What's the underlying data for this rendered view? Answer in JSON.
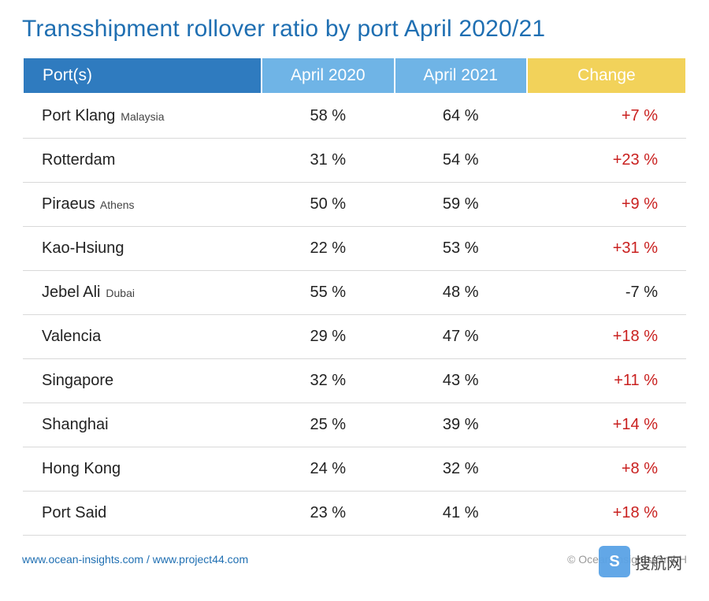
{
  "title": "Transshipment rollover ratio by port April 2020/21",
  "table": {
    "header": {
      "cells": [
        "Port(s)",
        "April 2020",
        "April 2021",
        "Change"
      ],
      "bg_colors": [
        "#2f7bbf",
        "#6fb4e6",
        "#6fb4e6",
        "#f2d25a"
      ],
      "widths_pct": [
        36,
        20,
        20,
        24
      ]
    },
    "rows": [
      {
        "port": "Port Klang",
        "sub": "Malaysia",
        "apr2020": "58 %",
        "apr2021": "64 %",
        "change": "+7 %",
        "change_sign": "pos"
      },
      {
        "port": "Rotterdam",
        "sub": "",
        "apr2020": "31 %",
        "apr2021": "54 %",
        "change": "+23 %",
        "change_sign": "pos"
      },
      {
        "port": "Piraeus",
        "sub": "Athens",
        "apr2020": "50 %",
        "apr2021": "59 %",
        "change": "+9 %",
        "change_sign": "pos"
      },
      {
        "port": "Kao-Hsiung",
        "sub": "",
        "apr2020": "22 %",
        "apr2021": "53 %",
        "change": "+31 %",
        "change_sign": "pos"
      },
      {
        "port": "Jebel Ali",
        "sub": "Dubai",
        "apr2020": "55 %",
        "apr2021": "48 %",
        "change": "-7 %",
        "change_sign": "neg"
      },
      {
        "port": "Valencia",
        "sub": "",
        "apr2020": "29 %",
        "apr2021": "47 %",
        "change": "+18 %",
        "change_sign": "pos"
      },
      {
        "port": "Singapore",
        "sub": "",
        "apr2020": "32 %",
        "apr2021": "43 %",
        "change": "+11 %",
        "change_sign": "pos"
      },
      {
        "port": "Shanghai",
        "sub": "",
        "apr2020": "25 %",
        "apr2021": "39 %",
        "change": "+14 %",
        "change_sign": "pos"
      },
      {
        "port": "Hong Kong",
        "sub": "",
        "apr2020": "24 %",
        "apr2021": "32 %",
        "change": "+8 %",
        "change_sign": "pos"
      },
      {
        "port": "Port Said",
        "sub": "",
        "apr2020": "23 %",
        "apr2021": "41 %",
        "change": "+18 %",
        "change_sign": "pos"
      }
    ],
    "row_border_color": "#d9d9d9",
    "text_color": "#222222",
    "positive_color": "#c9201f",
    "negative_color": "#222222",
    "header_text_color": "#ffffff",
    "font_size_body": 20,
    "font_size_sub": 14,
    "font_size_header": 21
  },
  "footer": {
    "links_text": "www.ocean-insights.com / www.project44.com",
    "copyright": "© Ocean Insights GmbH",
    "link_color": "#1f6fb2",
    "copyright_color": "#9a9a9a"
  },
  "watermark": {
    "icon_glyph": "S",
    "text": "搜航网",
    "icon_bg": "#5aa3e6"
  },
  "title_color": "#1f6fb2",
  "background_color": "#ffffff"
}
